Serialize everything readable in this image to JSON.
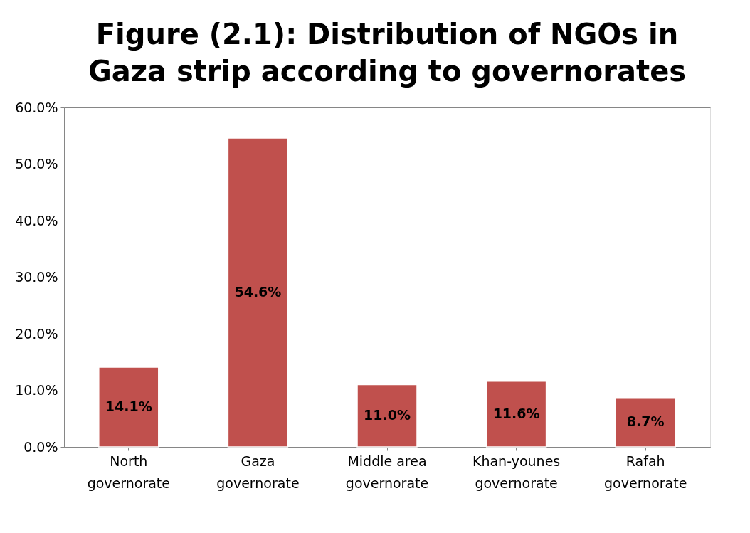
{
  "chart_data": {
    "type": "bar",
    "title": "Figure (2.1): Distribution of NGOs in Gaza strip according to governorates",
    "categories": [
      "North governorate",
      "Gaza governorate",
      "Middle area governorate",
      "Khan-younes governorate",
      "Rafah governorate"
    ],
    "values": [
      14.1,
      54.6,
      11.0,
      11.6,
      8.7
    ],
    "value_labels": [
      "14.1%",
      "54.6%",
      "11.0%",
      "11.6%",
      "8.7%"
    ],
    "color": "#c0504d",
    "ylim": [
      0,
      60
    ],
    "yticks": [
      {
        "value": 0,
        "label": "0.0%"
      },
      {
        "value": 10,
        "label": "10.0%"
      },
      {
        "value": 20,
        "label": "20.0%"
      },
      {
        "value": 30,
        "label": "30.0%"
      },
      {
        "value": 40,
        "label": "40.0%"
      },
      {
        "value": 50,
        "label": "50.0%"
      },
      {
        "value": 60,
        "label": "60.0%"
      }
    ],
    "grid": "y"
  }
}
